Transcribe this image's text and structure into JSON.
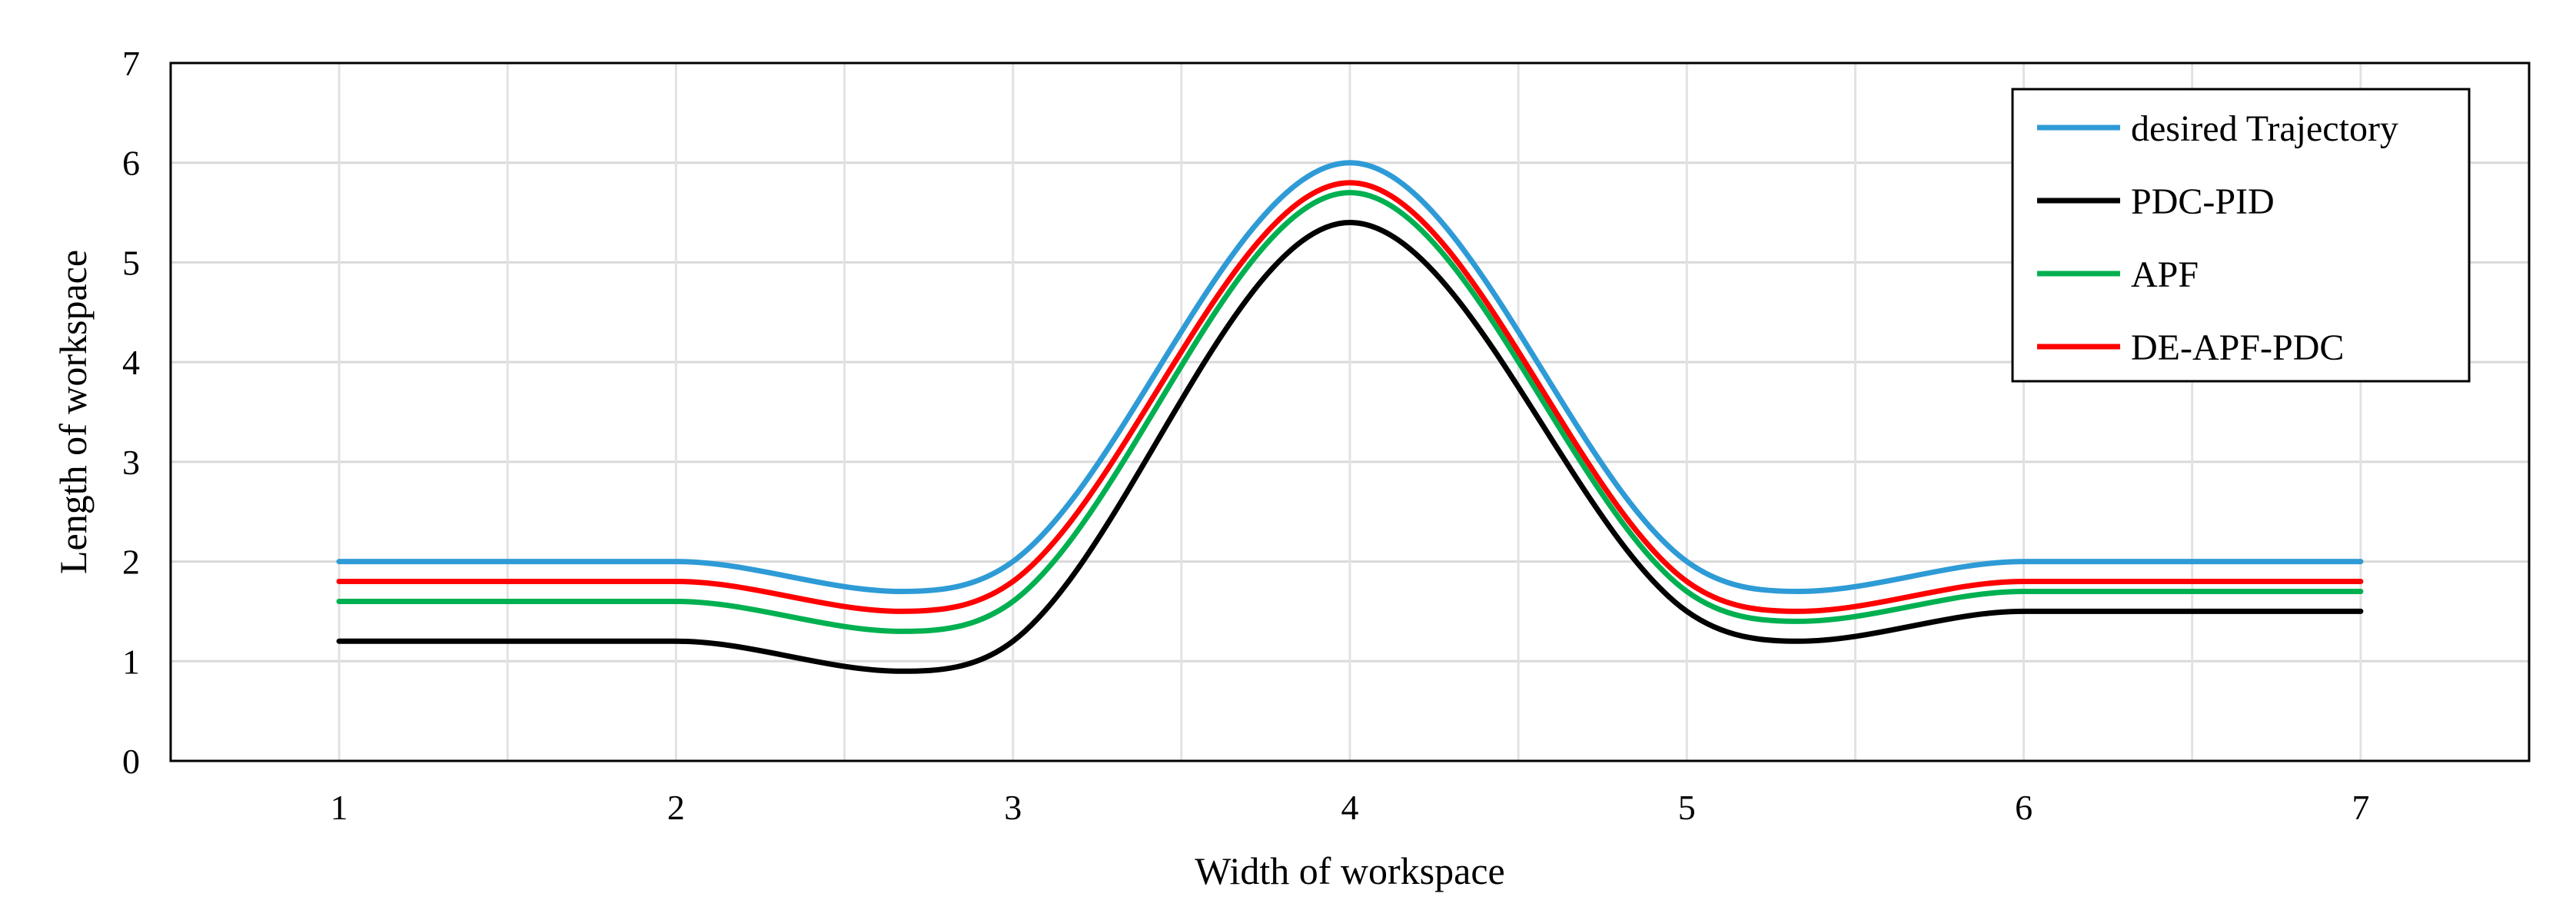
{
  "chart_data": {
    "type": "line",
    "title": "",
    "xlabel": "Width of workspace",
    "ylabel": "Length of workspace",
    "xlim": [
      0.5,
      7.5
    ],
    "ylim": [
      0,
      7
    ],
    "xticks": [
      1,
      2,
      3,
      4,
      5,
      6,
      7
    ],
    "yticks": [
      0,
      1,
      2,
      3,
      4,
      5,
      6,
      7
    ],
    "grid": true,
    "legend_position": "top-right",
    "series": [
      {
        "name": "desired Trajectory",
        "color": "#2e9bd6",
        "points": [
          [
            1,
            2
          ],
          [
            2,
            2
          ],
          [
            2.67,
            1.7
          ],
          [
            3,
            2
          ],
          [
            4,
            6
          ],
          [
            5,
            2
          ],
          [
            5.33,
            1.7
          ],
          [
            6,
            2
          ],
          [
            7,
            2
          ]
        ]
      },
      {
        "name": "PDC-PID",
        "color": "#000000",
        "points": [
          [
            1,
            1.2
          ],
          [
            2,
            1.2
          ],
          [
            2.67,
            0.9
          ],
          [
            3,
            1.2
          ],
          [
            4,
            5.4
          ],
          [
            5,
            1.5
          ],
          [
            5.33,
            1.2
          ],
          [
            6,
            1.5
          ],
          [
            7,
            1.5
          ]
        ]
      },
      {
        "name": "APF",
        "color": "#00b050",
        "points": [
          [
            1,
            1.6
          ],
          [
            2,
            1.6
          ],
          [
            2.67,
            1.3
          ],
          [
            3,
            1.6
          ],
          [
            4,
            5.7
          ],
          [
            5,
            1.7
          ],
          [
            5.33,
            1.4
          ],
          [
            6,
            1.7
          ],
          [
            7,
            1.7
          ]
        ]
      },
      {
        "name": "DE-APF-PDC",
        "color": "#ff0000",
        "points": [
          [
            1,
            1.8
          ],
          [
            2,
            1.8
          ],
          [
            2.67,
            1.5
          ],
          [
            3,
            1.8
          ],
          [
            4,
            5.8
          ],
          [
            5,
            1.8
          ],
          [
            5.33,
            1.5
          ],
          [
            6,
            1.8
          ],
          [
            7,
            1.8
          ]
        ]
      }
    ]
  }
}
